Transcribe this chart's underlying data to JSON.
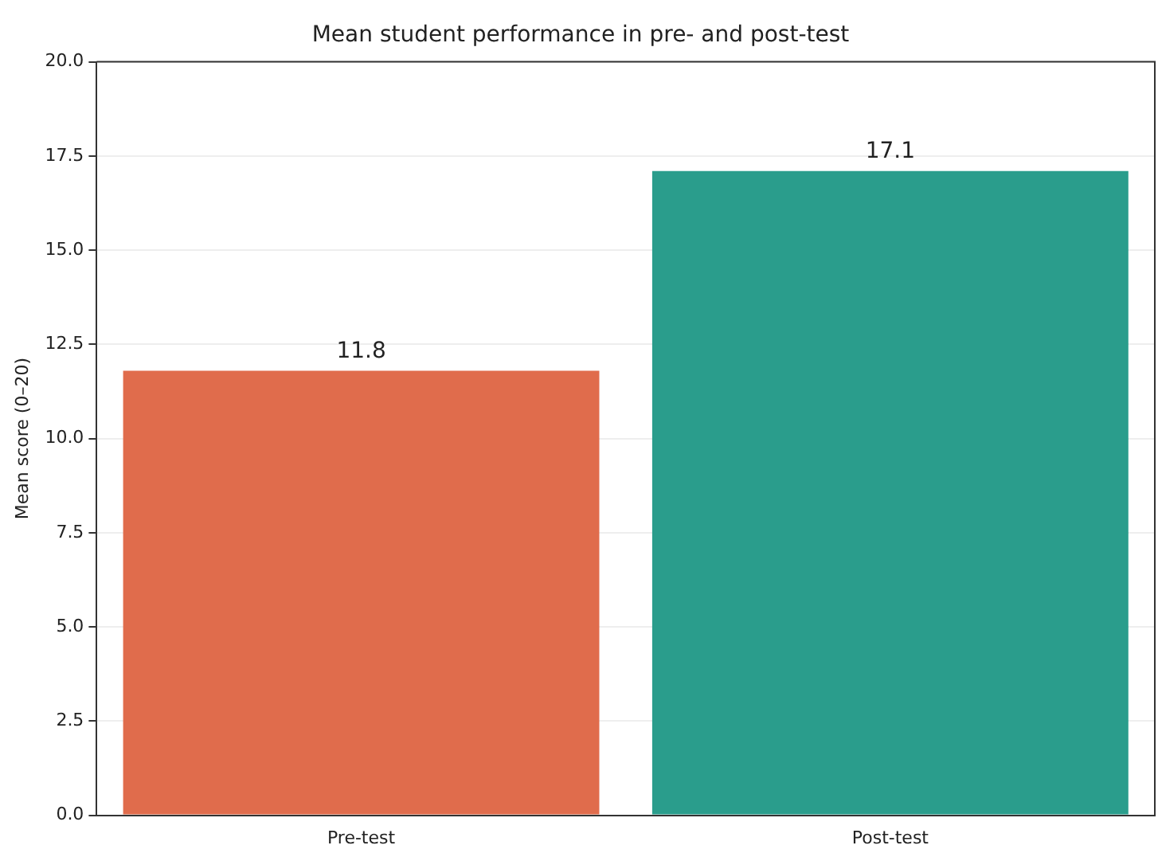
{
  "chart_data": {
    "type": "bar",
    "title": "Mean student performance in pre- and post-test",
    "ylabel": "Mean score (0–20)",
    "categories": [
      "Pre-test",
      "Post-test"
    ],
    "values": [
      11.8,
      17.1
    ],
    "colors": [
      "#e06c4c",
      "#2a9d8c"
    ],
    "ylim": [
      0,
      20
    ],
    "yticks": [
      {
        "value": 0,
        "label": "0.0"
      },
      {
        "value": 2.5,
        "label": "2.5"
      },
      {
        "value": 5,
        "label": "5.0"
      },
      {
        "value": 7.5,
        "label": "7.5"
      },
      {
        "value": 10,
        "label": "10.0"
      },
      {
        "value": 12.5,
        "label": "12.5"
      },
      {
        "value": 15,
        "label": "15.0"
      },
      {
        "value": 17.5,
        "label": "17.5"
      },
      {
        "value": 20,
        "label": "20.0"
      }
    ],
    "data_labels": true,
    "grid": "y",
    "legend": false
  }
}
